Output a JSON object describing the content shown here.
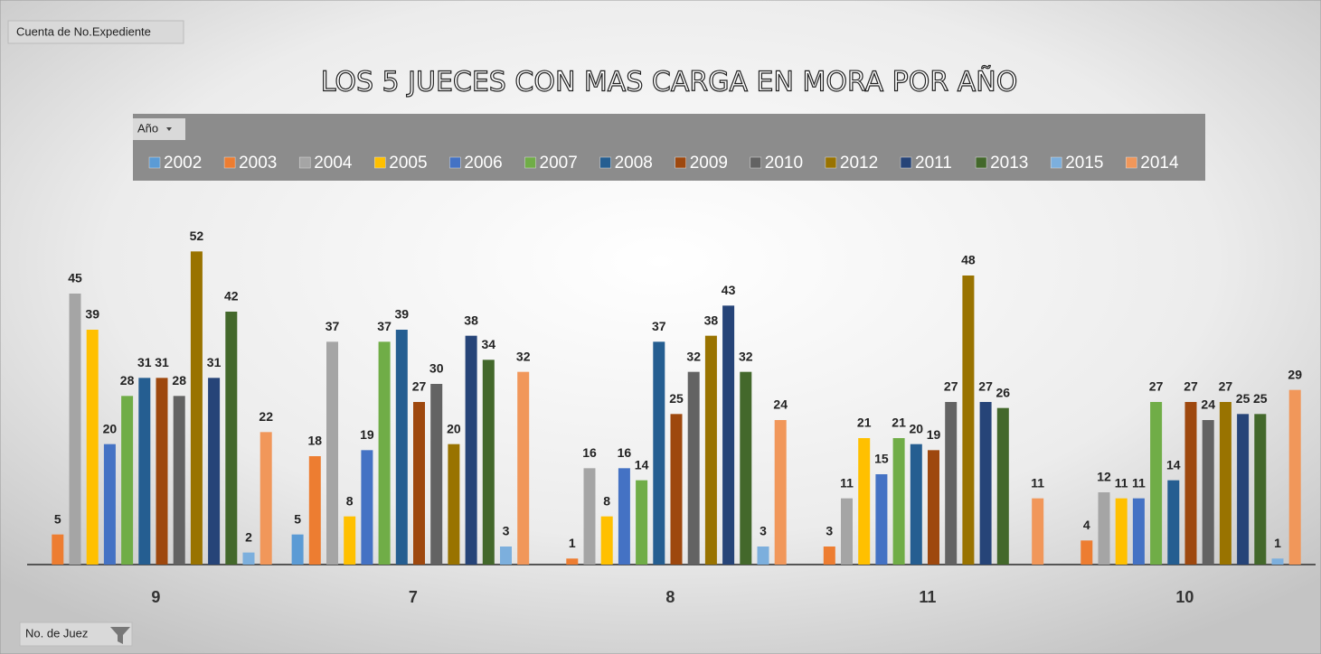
{
  "chart_data": {
    "type": "bar",
    "title": "LOS 5 JUECES CON MAS CARGA EN MORA POR AÑO",
    "value_field": "Cuenta de No.Expediente",
    "legend_title": "Año",
    "axis_field": "No. de Juez",
    "categories": [
      "9",
      "7",
      "8",
      "11",
      "10"
    ],
    "ylim": [
      0,
      60
    ],
    "series": [
      {
        "name": "2002",
        "color": "#5b9bd5",
        "values": [
          null,
          5,
          null,
          null,
          null
        ]
      },
      {
        "name": "2003",
        "color": "#ed7d31",
        "values": [
          5,
          18,
          1,
          3,
          4
        ]
      },
      {
        "name": "2004",
        "color": "#a5a5a5",
        "values": [
          45,
          37,
          16,
          11,
          12
        ]
      },
      {
        "name": "2005",
        "color": "#ffc000",
        "values": [
          39,
          8,
          8,
          21,
          11
        ]
      },
      {
        "name": "2006",
        "color": "#4472c4",
        "values": [
          20,
          19,
          16,
          15,
          11
        ]
      },
      {
        "name": "2007",
        "color": "#70ad47",
        "values": [
          28,
          37,
          14,
          21,
          27
        ]
      },
      {
        "name": "2008",
        "color": "#255e91",
        "values": [
          31,
          39,
          37,
          20,
          14
        ]
      },
      {
        "name": "2009",
        "color": "#9e480e",
        "values": [
          31,
          27,
          25,
          19,
          27
        ]
      },
      {
        "name": "2010",
        "color": "#636363",
        "values": [
          28,
          30,
          32,
          27,
          24
        ]
      },
      {
        "name": "2012",
        "color": "#997300",
        "values": [
          52,
          20,
          38,
          48,
          27
        ]
      },
      {
        "name": "2011",
        "color": "#264478",
        "values": [
          31,
          38,
          43,
          27,
          25
        ]
      },
      {
        "name": "2013",
        "color": "#43682b",
        "values": [
          42,
          34,
          32,
          26,
          25
        ]
      },
      {
        "name": "2015",
        "color": "#7cafdd",
        "values": [
          2,
          3,
          3,
          null,
          1
        ]
      },
      {
        "name": "2014",
        "color": "#f1975a",
        "values": [
          22,
          32,
          24,
          11,
          29
        ]
      }
    ]
  }
}
